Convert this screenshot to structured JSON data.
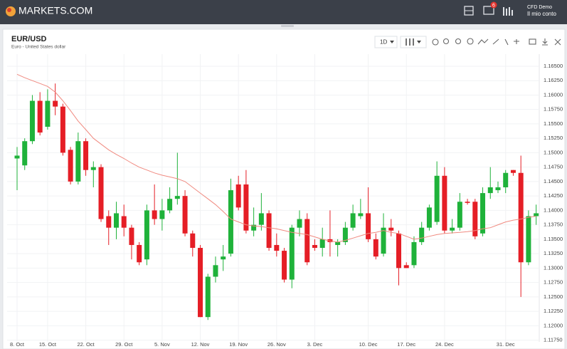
{
  "header": {
    "logo": "MARKETS.COM",
    "badge": "6",
    "account_type": "CFD Demo",
    "account_menu": "Il mio conto"
  },
  "toolbar": {
    "interval": "1D"
  },
  "chart_data": {
    "type": "candlestick",
    "title": "EUR/USD",
    "subtitle": "Euro - United States dollar",
    "categories": [
      "8. Oct",
      null,
      null,
      null,
      "15. Oct",
      null,
      null,
      null,
      null,
      "22. Oct",
      null,
      null,
      null,
      null,
      "29. Oct",
      null,
      null,
      null,
      null,
      "5. Nov",
      null,
      null,
      null,
      null,
      "12. Nov",
      null,
      null,
      null,
      null,
      "19. Nov",
      null,
      null,
      null,
      null,
      "26. Nov",
      null,
      null,
      null,
      null,
      "3. Dec",
      null,
      null,
      null,
      null,
      null,
      null,
      "10. Dec",
      null,
      null,
      null,
      null,
      "17. Dec",
      null,
      null,
      null,
      null,
      "24. Dec",
      null,
      null,
      null,
      null,
      null,
      null,
      null,
      "31. Dec",
      null,
      null,
      null,
      null
    ],
    "open": [
      1.149,
      1.1478,
      1.152,
      1.159,
      1.1545,
      1.159,
      1.158,
      1.1505,
      1.145,
      1.152,
      1.147,
      1.1475,
      1.139,
      1.137,
      1.139,
      1.137,
      1.134,
      1.1315,
      1.14,
      1.1385,
      1.14,
      1.142,
      1.1425,
      1.136,
      1.1335,
      1.1215,
      1.1285,
      1.1315,
      1.1325,
      1.1445,
      1.1445,
      1.1365,
      1.1375,
      1.1395,
      1.134,
      1.133,
      1.128,
      1.137,
      1.1385,
      1.134,
      1.1335,
      1.135,
      1.134,
      1.1345,
      1.137,
      1.139,
      1.1395,
      1.135,
      1.1325,
      1.137,
      1.136,
      1.1305,
      1.1305,
      1.1345,
      1.137,
      1.138,
      1.146,
      1.1365,
      1.137,
      1.1415,
      1.1415,
      1.136,
      1.143,
      1.1435,
      1.144,
      1.147,
      1.1465,
      1.131,
      1.139
    ],
    "high": [
      1.151,
      1.1525,
      1.16,
      1.1605,
      1.161,
      1.162,
      1.1585,
      1.151,
      1.1535,
      1.1525,
      1.1485,
      1.148,
      1.14,
      1.1415,
      1.141,
      1.1375,
      1.1345,
      1.141,
      1.1445,
      1.142,
      1.144,
      1.15,
      1.1435,
      1.1365,
      1.134,
      1.129,
      1.132,
      1.134,
      1.1455,
      1.146,
      1.147,
      1.1405,
      1.143,
      1.14,
      1.136,
      1.1335,
      1.1375,
      1.14,
      1.1395,
      1.135,
      1.137,
      1.14,
      1.135,
      1.138,
      1.141,
      1.142,
      1.144,
      1.136,
      1.1395,
      1.1385,
      1.1365,
      1.131,
      1.1355,
      1.138,
      1.141,
      1.1485,
      1.1475,
      1.1385,
      1.143,
      1.142,
      1.142,
      1.144,
      1.1475,
      1.145,
      1.147,
      1.147,
      1.1495,
      1.14,
      1.141
    ],
    "low": [
      1.1435,
      1.147,
      1.1515,
      1.153,
      1.154,
      1.1565,
      1.1495,
      1.1445,
      1.1445,
      1.146,
      1.144,
      1.138,
      1.134,
      1.135,
      1.1355,
      1.1315,
      1.1305,
      1.1305,
      1.1375,
      1.1365,
      1.1395,
      1.141,
      1.1355,
      1.132,
      1.1215,
      1.121,
      1.1275,
      1.1295,
      1.132,
      1.14,
      1.136,
      1.1355,
      1.1365,
      1.133,
      1.132,
      1.1275,
      1.1265,
      1.1355,
      1.1305,
      1.133,
      1.132,
      1.132,
      1.132,
      1.134,
      1.1365,
      1.1385,
      1.1345,
      1.1315,
      1.132,
      1.1355,
      1.127,
      1.13,
      1.13,
      1.134,
      1.1365,
      1.1375,
      1.136,
      1.136,
      1.1365,
      1.141,
      1.135,
      1.1355,
      1.142,
      1.143,
      1.143,
      1.146,
      1.125,
      1.1305,
      1.1375
    ],
    "close": [
      1.1495,
      1.152,
      1.159,
      1.1535,
      1.159,
      1.158,
      1.15,
      1.145,
      1.152,
      1.147,
      1.1475,
      1.1385,
      1.137,
      1.1395,
      1.137,
      1.134,
      1.131,
      1.14,
      1.1385,
      1.14,
      1.142,
      1.1425,
      1.136,
      1.1335,
      1.1215,
      1.1285,
      1.1305,
      1.132,
      1.1435,
      1.1405,
      1.1365,
      1.1375,
      1.1395,
      1.1335,
      1.133,
      1.128,
      1.137,
      1.1385,
      1.131,
      1.1335,
      1.135,
      1.1345,
      1.1345,
      1.137,
      1.1395,
      1.1395,
      1.135,
      1.132,
      1.137,
      1.1365,
      1.13,
      1.13,
      1.1345,
      1.137,
      1.1405,
      1.146,
      1.1365,
      1.137,
      1.1415,
      1.1413,
      1.1355,
      1.143,
      1.144,
      1.144,
      1.1465,
      1.1465,
      1.131,
      1.139,
      1.1395
    ],
    "up_color": "#1fb23a",
    "down_color": "#e51e26",
    "moving_average": {
      "color": "#f08a80",
      "values": [
        1.1636,
        1.163,
        1.1625,
        1.162,
        1.1615,
        1.1605,
        1.159,
        1.1573,
        1.1555,
        1.154,
        1.1525,
        1.1515,
        1.1505,
        1.1497,
        1.149,
        1.1482,
        1.1475,
        1.147,
        1.1465,
        1.1461,
        1.1458,
        1.1455,
        1.145,
        1.144,
        1.143,
        1.142,
        1.141,
        1.1398,
        1.1385,
        1.138,
        1.1375,
        1.1373,
        1.1372,
        1.137,
        1.1368,
        1.1365,
        1.1362,
        1.136,
        1.1358,
        1.1354,
        1.135,
        1.1347,
        1.1345,
        1.1348,
        1.1352,
        1.1356,
        1.136,
        1.1362,
        1.1365,
        1.1362,
        1.136,
        1.1355,
        1.135,
        1.1352,
        1.1355,
        1.1358,
        1.136,
        1.1361,
        1.1362,
        1.1363,
        1.1365,
        1.1368,
        1.137,
        1.1375,
        1.138,
        1.1383,
        1.1385,
        1.1388,
        1.139
      ]
    },
    "ylim": [
      1.1172,
      1.1666
    ],
    "yticks": [
      {
        "value": 1.165,
        "label": "1.16500"
      },
      {
        "value": 1.1625,
        "label": "1.16250"
      },
      {
        "value": 1.16,
        "label": "1.16000"
      },
      {
        "value": 1.1575,
        "label": "1.15750"
      },
      {
        "value": 1.155,
        "label": "1.15500"
      },
      {
        "value": 1.1525,
        "label": "1.15250"
      },
      {
        "value": 1.15,
        "label": "1.15000"
      },
      {
        "value": 1.1475,
        "label": "1.14750"
      },
      {
        "value": 1.145,
        "label": "1.14500"
      },
      {
        "value": 1.1425,
        "label": "1.14250"
      },
      {
        "value": 1.14,
        "label": "1.14000"
      },
      {
        "value": 1.1375,
        "label": "1.13750"
      },
      {
        "value": 1.135,
        "label": "1.13500"
      },
      {
        "value": 1.1325,
        "label": "1.13250"
      },
      {
        "value": 1.13,
        "label": "1.13000"
      },
      {
        "value": 1.1275,
        "label": "1.12750"
      },
      {
        "value": 1.125,
        "label": "1.12500"
      },
      {
        "value": 1.1225,
        "label": "1.12250"
      },
      {
        "value": 1.12,
        "label": "1.12000"
      },
      {
        "value": 1.1175,
        "label": "1.11750"
      }
    ],
    "grid": true
  }
}
